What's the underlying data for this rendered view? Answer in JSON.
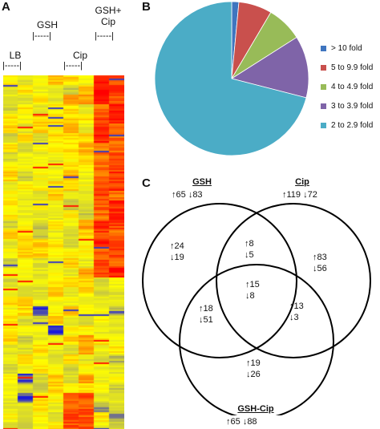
{
  "panels": {
    "a": {
      "letter": "A",
      "groups": [
        {
          "label": "LB",
          "bracket": "|-----|"
        },
        {
          "label": "GSH",
          "bracket": "|-----|"
        },
        {
          "label": "Cip",
          "bracket": "|-----|"
        },
        {
          "label": "GSH+\nCip",
          "bracket": "|-----|"
        }
      ]
    },
    "b": {
      "letter": "B"
    },
    "c": {
      "letter": "C"
    }
  },
  "chart_data": [
    {
      "type": "heatmap",
      "columns": 8,
      "color_scale": [
        "#1a1adb",
        "#c8c840",
        "#ffff00",
        "#ff8c00",
        "#ff0000"
      ],
      "note_values": "relative expression, low to high"
    },
    {
      "type": "pie",
      "title": "",
      "legend_position": "right",
      "slices": [
        {
          "label": "> 10 fold",
          "value": 1.5,
          "color": "#3f75bf"
        },
        {
          "label": "5 to 9.9 fold",
          "value": 7,
          "color": "#c9504d"
        },
        {
          "label": "4 to 4.9 fold",
          "value": 7.5,
          "color": "#98bb58"
        },
        {
          "label": "3 to 3.9 fold",
          "value": 13,
          "color": "#7f64a8"
        },
        {
          "label": "2 to 2.9 fold",
          "value": 71,
          "color": "#4bacc6"
        }
      ]
    }
  ],
  "venn": {
    "sets": [
      {
        "name": "GSH",
        "total_up": "↑65",
        "total_down": "↓83"
      },
      {
        "name": "Cip",
        "total_up": "↑119",
        "total_down": "↓72"
      },
      {
        "name": "GSH-Cip",
        "total_up": "↑65",
        "total_down": "↓88"
      }
    ],
    "regions": {
      "gsh_only": {
        "up": "↑24",
        "down": "↓19"
      },
      "cip_only": {
        "up": "↑83",
        "down": "↓56"
      },
      "gshcip_only": {
        "up": "↑19",
        "down": "↓26"
      },
      "gsh_cip": {
        "up": "↑8",
        "down": "↓5"
      },
      "gsh_gshcip": {
        "up": "↑18",
        "down": "↓51"
      },
      "cip_gshcip": {
        "up": "↑13",
        "down": "↓3"
      },
      "all": {
        "up": "↑15",
        "down": "↓8"
      }
    }
  }
}
